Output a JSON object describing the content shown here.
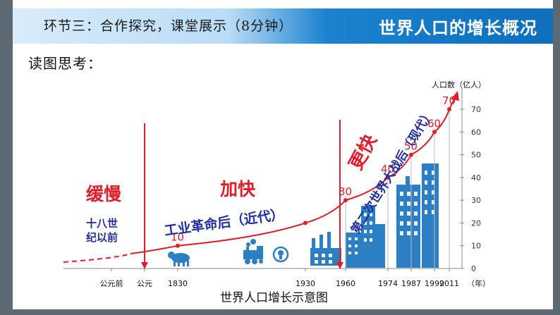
{
  "header": {
    "subtitle": "环节三：合作探究，课堂展示（8分钟）",
    "title": "世界人口的增长概况"
  },
  "prompt": "读图思考：",
  "colors": {
    "curve": "#e11d2a",
    "stage_label": "#e11d2a",
    "era_label": "#1f2d9e",
    "icon": "#2b7fc2",
    "axis": "#888888"
  },
  "stages": [
    {
      "label": "缓慢",
      "era": "十八世纪以前"
    },
    {
      "label": "加快",
      "era": "工业革命后（近代）"
    },
    {
      "label": "更快",
      "era": "第二次世界大战后（现代）"
    }
  ],
  "era_lines": [
    "十八世",
    "纪以前"
  ],
  "icons": [
    "buffalo-icon",
    "steam-train-icon",
    "lightbulb-icon",
    "factory-icon",
    "skyscraper-icon"
  ],
  "chart_data": {
    "type": "line",
    "title": "世界人口增长示意图",
    "ylabel": "人口数（亿人）",
    "xlabel": "（年）",
    "y_ticks": [
      "0",
      "10",
      "20",
      "30",
      "40",
      "50",
      "60",
      "70"
    ],
    "x_ticks": [
      "公元前",
      "公元",
      "1830",
      "1930",
      "1960",
      "1974",
      "1987",
      "1999",
      "2011"
    ],
    "series": [
      {
        "points": [
          {
            "x": "1830",
            "y": 10,
            "label": "10"
          },
          {
            "x": "1930",
            "y": 20,
            "label": ""
          },
          {
            "x": "1960",
            "y": 30,
            "label": "30"
          },
          {
            "x": "1974",
            "y": 40,
            "label": "40"
          },
          {
            "x": "1987",
            "y": 50,
            "label": "50"
          },
          {
            "x": "1999",
            "y": 60,
            "label": "60"
          },
          {
            "x": "2011",
            "y": 70,
            "label": "70"
          }
        ]
      }
    ],
    "ylim": [
      0,
      70
    ]
  }
}
